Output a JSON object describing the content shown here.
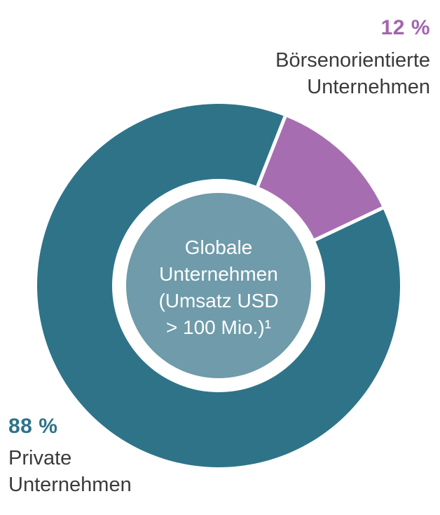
{
  "chart_data": {
    "type": "pie",
    "donut": true,
    "title": "",
    "series": [
      {
        "id": "publicly-listed",
        "name": "Börsenorientierte Unternehmen",
        "value": 12,
        "percent_label": "12 %",
        "color": "#A76DB1"
      },
      {
        "id": "private",
        "name": "Private Unternehmen",
        "value": 88,
        "percent_label": "88 %",
        "color": "#2F7389"
      }
    ],
    "center_text": [
      "Globale",
      "Unternehmen",
      "(Umsatz USD",
      "> 100 Mio.)¹"
    ],
    "layout": {
      "start_angle_deg_from_top": 21.5,
      "slice_gap_color": "#FFFFFF",
      "inner_circle_color": "#6F9BAA",
      "hole_color": "#FFFFFF",
      "center_text_color": "#FFFFFF",
      "legend": "none",
      "grid": "off"
    }
  },
  "labels": {
    "top_right": {
      "percent": "12 %",
      "percent_color": "#A365AF",
      "line1": "Börsenorientierte",
      "line2": "Unternehmen",
      "text_color": "#3B3B3B"
    },
    "bottom_left": {
      "percent": "88 %",
      "percent_color": "#2E7389",
      "line1": "Private",
      "line2": "Unternehmen",
      "text_color": "#3B3B3B"
    }
  }
}
